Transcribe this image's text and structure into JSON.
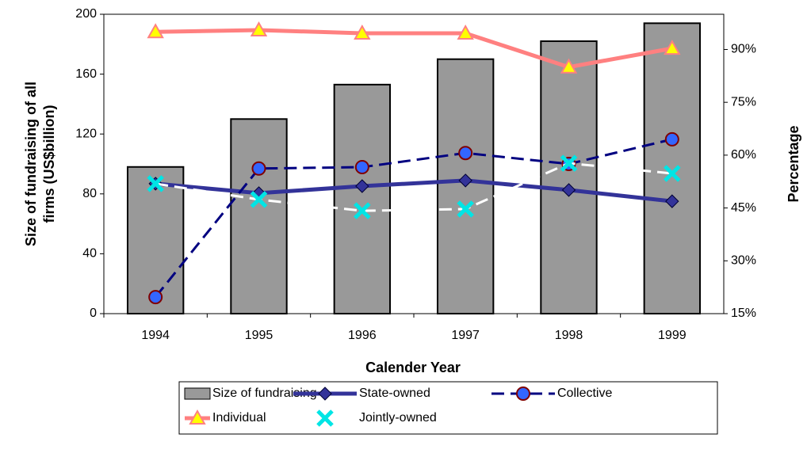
{
  "chart_data": {
    "type": "combo",
    "categories": [
      "1994",
      "1995",
      "1996",
      "1997",
      "1998",
      "1999"
    ],
    "x_label": "Calender Year",
    "y_label": [
      "Size of fundraising of all",
      "firms (US$billion)"
    ],
    "y2_label": "Percentage",
    "ylim": [
      0,
      200
    ],
    "yticks": [
      0,
      40,
      80,
      120,
      160,
      200
    ],
    "y2lim": [
      15,
      100
    ],
    "y2ticks": [
      {
        "value": 15,
        "label": "15%"
      },
      {
        "value": 30,
        "label": "30%"
      },
      {
        "value": 45,
        "label": "45%"
      },
      {
        "value": 60,
        "label": "60%"
      },
      {
        "value": 75,
        "label": "75%"
      },
      {
        "value": 90,
        "label": "90%"
      }
    ],
    "series": [
      {
        "name": "Size of fundraising",
        "type": "bar",
        "color": "#999999",
        "values": [
          98,
          130,
          153,
          170,
          182,
          194
        ]
      },
      {
        "name": "State-owned",
        "type": "line",
        "axis": "y2",
        "color": "#333399",
        "marker": "diamond",
        "dash": false,
        "values": [
          51.9,
          49.2,
          51.2,
          52.8,
          50.1,
          46.9
        ]
      },
      {
        "name": "Collective",
        "type": "line",
        "axis": "y2",
        "color": "#000080",
        "marker": "circle",
        "dash": true,
        "values": [
          19.7,
          56.2,
          56.6,
          60.6,
          57.5,
          64.5
        ]
      },
      {
        "name": "Individual",
        "type": "line",
        "axis": "y2",
        "color": "#ff8080",
        "marker": "triangle",
        "dash": false,
        "values": [
          95,
          95.5,
          94.6,
          94.6,
          85,
          90.3
        ]
      },
      {
        "name": "Jointly-owned",
        "type": "line",
        "axis": "y2",
        "color": "#ffffff",
        "marker": "x",
        "dash": true,
        "values": [
          51.9,
          47.4,
          44.2,
          44.7,
          57.7,
          54.8
        ]
      }
    ]
  }
}
